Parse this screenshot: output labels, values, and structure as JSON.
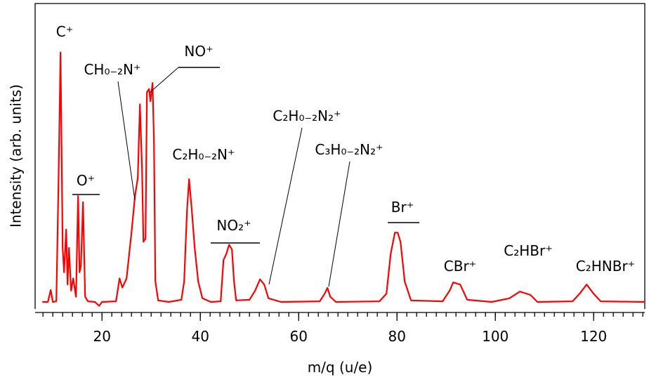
{
  "chart_data": {
    "type": "line",
    "xlabel": "m/q (u/e)",
    "ylabel": "Intensity (arb. units)",
    "color": "#ff0000",
    "xlim": [
      6.4,
      130.4
    ],
    "ylim": [
      0,
      100
    ],
    "xticks": [
      20,
      40,
      60,
      80,
      100,
      120
    ],
    "minor_xticks": [
      8,
      10,
      12,
      14,
      16,
      18,
      20,
      22,
      24,
      26,
      28,
      30,
      32,
      34,
      36,
      38,
      40,
      42,
      44,
      46,
      48,
      50,
      52,
      54,
      56,
      58,
      60,
      62,
      64,
      66,
      68,
      70,
      72,
      74,
      76,
      78,
      80,
      82,
      84,
      86,
      88,
      90,
      92,
      94,
      96,
      98,
      100,
      102,
      104,
      106,
      108,
      110,
      112,
      114,
      116,
      118,
      120,
      122,
      124,
      126,
      128,
      130
    ],
    "x": [
      7.86,
      9.0,
      9.57,
      10.0,
      10.71,
      11.14,
      11.57,
      12.0,
      12.29,
      12.71,
      13.0,
      13.29,
      13.71,
      14.14,
      14.71,
      15.14,
      15.43,
      15.71,
      16.14,
      16.57,
      17.14,
      18.57,
      19.43,
      20.0,
      22.86,
      23.57,
      24.14,
      25.0,
      26.0,
      26.71,
      27.29,
      27.71,
      28.14,
      28.43,
      28.86,
      29.14,
      29.57,
      29.86,
      30.29,
      30.57,
      30.86,
      31.43,
      33.57,
      36.14,
      36.71,
      37.29,
      37.71,
      38.29,
      38.86,
      39.57,
      40.43,
      42.14,
      44.14,
      44.71,
      45.29,
      45.86,
      46.43,
      46.86,
      47.29,
      50.0,
      51.14,
      52.14,
      53.0,
      53.86,
      56.43,
      64.29,
      65.29,
      65.86,
      66.43,
      67.57,
      76.43,
      77.86,
      78.71,
      79.57,
      80.14,
      80.71,
      81.57,
      82.86,
      89.29,
      90.71,
      91.43,
      92.86,
      94.29,
      99.29,
      102.86,
      105.0,
      107.14,
      108.57,
      115.71,
      117.14,
      118.57,
      120.0,
      121.43,
      130.43
    ],
    "values": [
      2.3,
      2.3,
      6.2,
      2.3,
      2.5,
      40,
      84,
      20,
      12,
      26,
      8,
      20,
      6,
      10,
      4,
      37,
      12,
      14,
      35,
      4,
      2.5,
      2.3,
      1.0,
      2.3,
      2.5,
      10,
      7,
      10,
      25,
      37,
      43,
      67,
      46,
      22,
      23,
      71,
      72,
      68,
      74,
      55,
      9,
      2.8,
      2.3,
      3,
      9,
      32,
      42.5,
      32,
      20,
      9,
      3.5,
      2.3,
      2.5,
      16,
      18,
      21,
      19.5,
      9,
      2.8,
      3,
      6,
      9.7,
      8,
      3.5,
      2.3,
      2.5,
      5,
      6.9,
      4,
      2.3,
      2.5,
      5,
      18,
      25,
      25,
      22,
      9,
      2.8,
      2.5,
      6,
      8.7,
      8,
      3,
      2.3,
      3.5,
      5.7,
      4.6,
      2.3,
      2.5,
      5,
      8,
      5,
      2.5,
      2.3
    ],
    "annotations": [
      "C⁺",
      "O⁺",
      "CH₀₋₂N⁺",
      "NO⁺",
      "C₂H₀₋₂N⁺",
      "NO₂⁺",
      "C₂H₀₋₂N₂⁺",
      "C₃H₀₋₂N₂⁺",
      "Br⁺",
      "CBr⁺",
      "C₂HBr⁺",
      "C₂HNBr⁺"
    ]
  }
}
